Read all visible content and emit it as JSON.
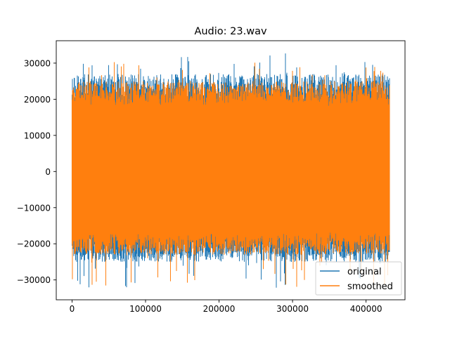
{
  "chart_data": {
    "type": "line",
    "title": "Audio: 23.wav",
    "xlabel": "",
    "ylabel": "",
    "xlim": [
      -21500,
      453000
    ],
    "ylim": [
      -35500,
      36200
    ],
    "x_ticks": [
      0,
      100000,
      200000,
      300000,
      400000
    ],
    "x_tick_labels": [
      "0",
      "100000",
      "200000",
      "300000",
      "400000"
    ],
    "y_ticks": [
      -30000,
      -20000,
      -10000,
      0,
      10000,
      20000,
      30000
    ],
    "y_tick_labels": [
      "−30000",
      "−20000",
      "−10000",
      "0",
      "10000",
      "20000",
      "30000"
    ],
    "x_range": [
      0,
      432000
    ],
    "grid": false,
    "legend_position": "lower right",
    "series": [
      {
        "name": "original",
        "color": "#1f77b4",
        "description": "dense audio waveform",
        "peak_max": 32700,
        "peak_min": -32600,
        "typical_envelope": [
          -25000,
          27000
        ]
      },
      {
        "name": "smoothed",
        "color": "#ff7f0e",
        "description": "dense audio waveform drawn on top",
        "peak_max": 30500,
        "peak_min": -32200,
        "typical_envelope": [
          -24000,
          26000
        ]
      }
    ]
  }
}
